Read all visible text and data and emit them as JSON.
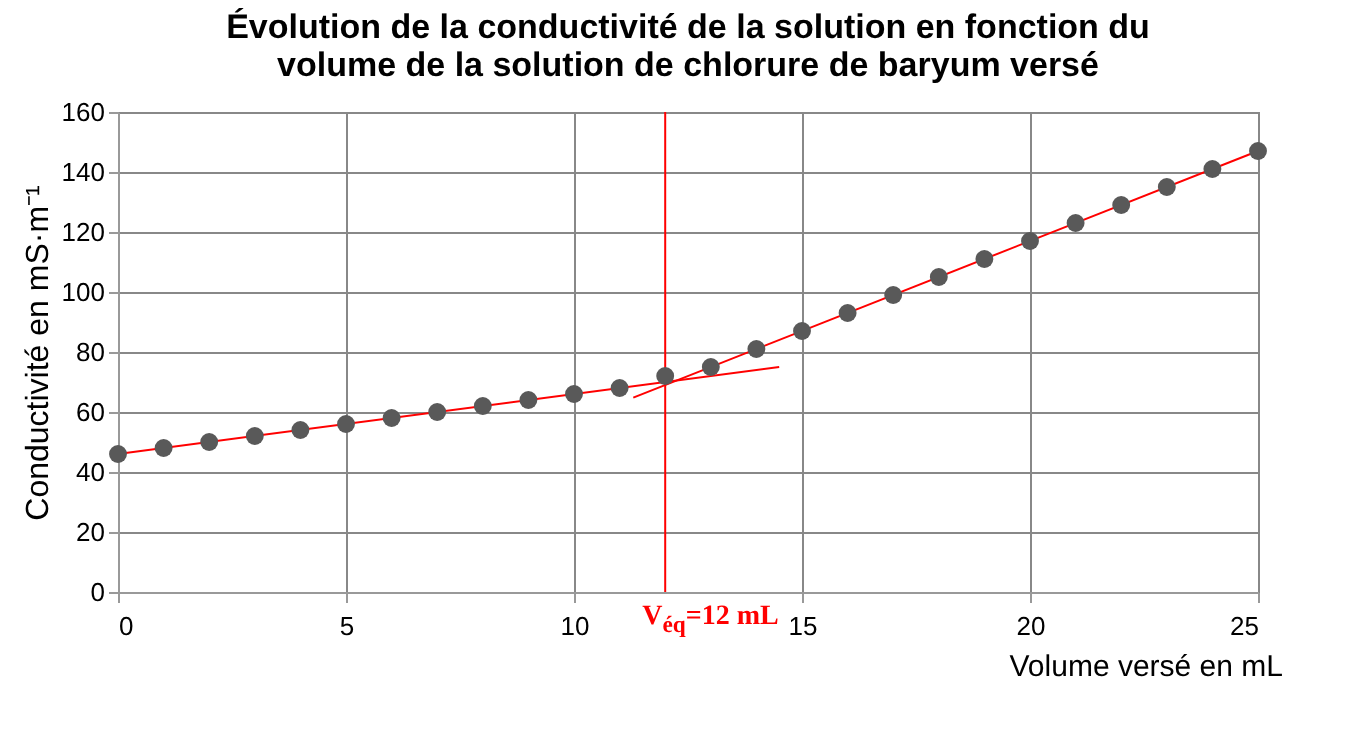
{
  "chart_data": {
    "type": "scatter",
    "title": "Évolution de la conductivité de la solution en fonction du\nvolume de la solution de chlorure de baryum versé",
    "xlabel": "Volume versé en mL",
    "ylabel": "Conductivité en mS·m⁻¹",
    "x": [
      0,
      1,
      2,
      3,
      4,
      5,
      6,
      7,
      8,
      9,
      10,
      11,
      12,
      13,
      14,
      15,
      16,
      17,
      18,
      19,
      20,
      21,
      22,
      23,
      24,
      25
    ],
    "series": [
      {
        "color": "#595959",
        "values": [
          46,
          48,
          50,
          52,
          54,
          56,
          58,
          60,
          62,
          64,
          66,
          68,
          72,
          75,
          81,
          87,
          93,
          99,
          105,
          111,
          117,
          123,
          129,
          135,
          141,
          147
        ]
      },
      {
        "type": "line",
        "marker": "none",
        "color": "#ff0000",
        "x": [
          0,
          14.5
        ],
        "values": [
          46,
          75
        ]
      },
      {
        "type": "line",
        "marker": "none",
        "color": "#ff0000",
        "x": [
          11.3,
          25
        ],
        "values": [
          64.8,
          147
        ]
      }
    ],
    "xlim": [
      0,
      25
    ],
    "xticks": [
      0,
      5,
      10,
      15,
      20,
      25
    ],
    "ylim": [
      0,
      160
    ],
    "yticks": [
      0,
      20,
      40,
      60,
      80,
      100,
      120,
      140,
      160
    ],
    "ref_lines": [
      {
        "axis": "x",
        "value": 12,
        "label": "V$_{éq}$=12 mL",
        "color": "#ff0000"
      }
    ],
    "grid": true,
    "marker": "circle",
    "line_style": "solid"
  }
}
